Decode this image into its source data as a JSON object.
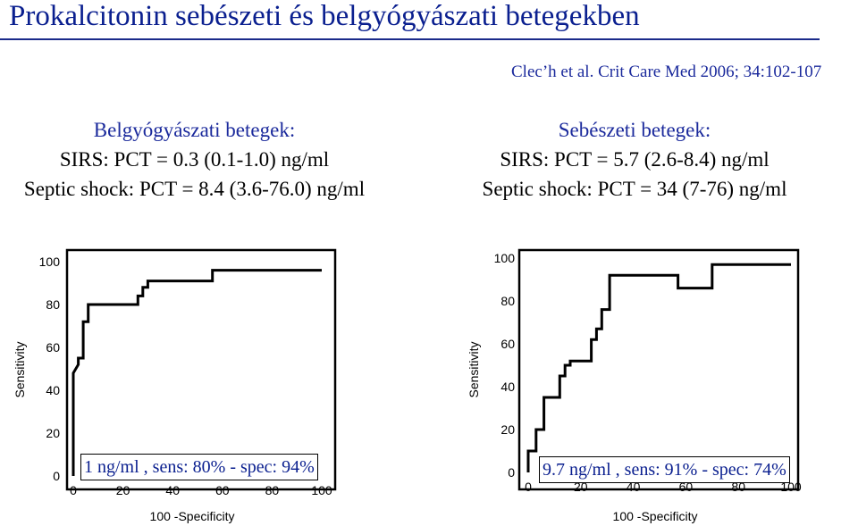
{
  "page": {
    "title": "Prokalcitonin sebészeti és belgyógyászati betegekben",
    "citation": "Clec’h et al. Crit Care Med 2006; 34:102-107"
  },
  "left_panel": {
    "heading": "Belgyógyászati betegek:",
    "line1": "SIRS: PCT = 0.3 (0.1-1.0) ng/ml",
    "line2": "Septic shock: PCT = 8.4 (3.6-76.0) ng/ml",
    "callout": "1 ng/ml , sens: 80% - spec: 94%"
  },
  "right_panel": {
    "heading": "Sebészeti betegek:",
    "line1": "SIRS: PCT = 5.7 (2.6-8.4) ng/ml",
    "line2": "Septic shock: PCT = 34 (7-76) ng/ml",
    "callout": "9.7 ng/ml , sens: 91% - spec: 74%"
  },
  "chart_data": [
    {
      "type": "line",
      "xlabel": "100 -Specificity",
      "ylabel": "Sensitivity",
      "xlim": [
        0,
        100
      ],
      "ylim": [
        0,
        100
      ],
      "x_ticks": [
        "0",
        "20",
        "40",
        "60",
        "80",
        "100"
      ],
      "y_ticks": [
        "0",
        "20",
        "40",
        "60",
        "80",
        "100"
      ],
      "grid": false,
      "series": [
        {
          "x": [
            0,
            0,
            2,
            2,
            4,
            4,
            6,
            6,
            26,
            26,
            28,
            28,
            30,
            30,
            56,
            56,
            100
          ],
          "y": [
            0,
            48,
            52,
            55,
            55,
            72,
            72,
            80,
            80,
            84,
            84,
            88,
            88,
            91,
            91,
            96,
            96
          ]
        }
      ]
    },
    {
      "type": "line",
      "xlabel": "100 -Specificity",
      "ylabel": "Sensitivity",
      "xlim": [
        0,
        100
      ],
      "ylim": [
        0,
        100
      ],
      "x_ticks": [
        "0",
        "20",
        "40",
        "60",
        "80",
        "100"
      ],
      "y_ticks": [
        "0",
        "20",
        "40",
        "60",
        "80",
        "100"
      ],
      "grid": false,
      "series": [
        {
          "x": [
            0,
            0,
            3,
            3,
            6,
            6,
            12,
            12,
            14,
            14,
            16,
            16,
            24,
            24,
            26,
            26,
            28,
            28,
            31,
            31,
            57,
            57,
            70,
            70,
            100
          ],
          "y": [
            0,
            10,
            10,
            20,
            20,
            35,
            35,
            45,
            45,
            50,
            50,
            52,
            52,
            62,
            62,
            67,
            67,
            76,
            76,
            92,
            92,
            86,
            86,
            97,
            97
          ]
        }
      ]
    }
  ]
}
